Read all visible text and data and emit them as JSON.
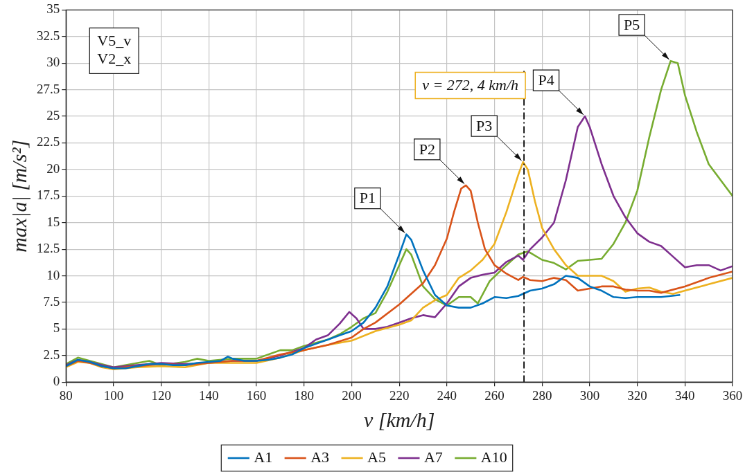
{
  "chart_data": {
    "type": "line",
    "xlabel": "v [km/h]",
    "ylabel": "max|a| [m/s²]",
    "xlim": [
      80,
      360
    ],
    "xticks": [
      80,
      100,
      120,
      140,
      160,
      180,
      200,
      220,
      240,
      260,
      280,
      300,
      320,
      340,
      360
    ],
    "ylim": [
      0,
      35
    ],
    "yticks": [
      0,
      2.5,
      5,
      7.5,
      10,
      12.5,
      15,
      17.5,
      20,
      22.5,
      25,
      27.5,
      30,
      32.5,
      35
    ],
    "grid": true,
    "legend": "bottom",
    "line_style": "solid",
    "marker": "none",
    "series": [
      {
        "name": "A1",
        "color": "#0072bd",
        "x": [
          80,
          85,
          90,
          95,
          100,
          105,
          110,
          115,
          120,
          125,
          130,
          135,
          140,
          145,
          148,
          150,
          155,
          160,
          165,
          170,
          175,
          180,
          185,
          190,
          195,
          200,
          205,
          210,
          215,
          220,
          223,
          225,
          230,
          235,
          240,
          245,
          250,
          255,
          260,
          265,
          270,
          275,
          280,
          285,
          290,
          295,
          300,
          305,
          310,
          315,
          320,
          325,
          330,
          338
        ],
        "values": [
          1.5,
          2.1,
          1.9,
          1.5,
          1.3,
          1.3,
          1.5,
          1.7,
          1.7,
          1.6,
          1.6,
          1.8,
          1.9,
          2.0,
          2.4,
          2.2,
          2.0,
          2.0,
          2.1,
          2.3,
          2.6,
          3.2,
          3.6,
          4.0,
          4.4,
          4.8,
          5.6,
          7.0,
          9.0,
          12.0,
          13.9,
          13.4,
          10.5,
          8.2,
          7.2,
          7.0,
          7.0,
          7.4,
          8.0,
          7.9,
          8.1,
          8.6,
          8.8,
          9.2,
          10.0,
          9.8,
          9.0,
          8.6,
          8.0,
          7.9,
          8.0,
          8.0,
          8.0,
          8.2
        ]
      },
      {
        "name": "A3",
        "color": "#d95319",
        "x": [
          80,
          85,
          90,
          95,
          100,
          110,
          120,
          130,
          140,
          150,
          160,
          170,
          180,
          190,
          200,
          205,
          210,
          220,
          230,
          235,
          240,
          243,
          246,
          248,
          250,
          253,
          256,
          260,
          265,
          270,
          272,
          275,
          280,
          285,
          290,
          295,
          300,
          305,
          310,
          315,
          320,
          325,
          330,
          340,
          350,
          360
        ],
        "values": [
          1.5,
          2.0,
          1.8,
          1.5,
          1.3,
          1.5,
          1.7,
          1.6,
          1.8,
          2.0,
          2.0,
          2.6,
          3.0,
          3.5,
          4.2,
          5.0,
          5.6,
          7.3,
          9.3,
          11.0,
          13.5,
          16.0,
          18.2,
          18.5,
          18.0,
          15.0,
          12.5,
          11.0,
          10.2,
          9.6,
          9.9,
          9.6,
          9.5,
          9.8,
          9.6,
          8.6,
          8.8,
          9.0,
          9.0,
          8.7,
          8.6,
          8.6,
          8.4,
          9.0,
          9.8,
          10.4
        ]
      },
      {
        "name": "A5",
        "color": "#edb120",
        "x": [
          80,
          85,
          90,
          95,
          100,
          110,
          120,
          130,
          140,
          150,
          160,
          170,
          180,
          190,
          200,
          210,
          220,
          225,
          230,
          235,
          240,
          245,
          250,
          255,
          260,
          265,
          270,
          272,
          274,
          277,
          280,
          285,
          290,
          295,
          300,
          305,
          310,
          315,
          320,
          325,
          330,
          335,
          340,
          350,
          360
        ],
        "values": [
          1.4,
          1.9,
          1.8,
          1.4,
          1.2,
          1.4,
          1.5,
          1.4,
          1.8,
          1.8,
          1.8,
          2.3,
          3.0,
          3.5,
          3.9,
          4.8,
          5.4,
          5.8,
          7.0,
          7.7,
          8.2,
          9.8,
          10.5,
          11.5,
          13.0,
          16.0,
          19.5,
          20.7,
          20.0,
          17.0,
          14.5,
          12.5,
          11.0,
          10.0,
          10.0,
          10.0,
          9.5,
          8.5,
          8.8,
          8.9,
          8.5,
          8.3,
          8.6,
          9.2,
          9.8
        ]
      },
      {
        "name": "A7",
        "color": "#7e2f8e",
        "x": [
          80,
          85,
          90,
          95,
          100,
          110,
          120,
          130,
          140,
          150,
          160,
          170,
          180,
          185,
          190,
          195,
          199,
          202,
          205,
          210,
          215,
          220,
          225,
          230,
          235,
          240,
          245,
          250,
          255,
          260,
          265,
          270,
          272,
          275,
          280,
          285,
          290,
          295,
          298,
          300,
          305,
          310,
          315,
          320,
          325,
          330,
          335,
          340,
          345,
          350,
          355,
          360
        ],
        "values": [
          1.6,
          2.1,
          1.9,
          1.6,
          1.4,
          1.6,
          1.8,
          1.7,
          1.8,
          2.0,
          2.0,
          2.5,
          3.2,
          4.0,
          4.4,
          5.5,
          6.6,
          6.0,
          5.0,
          5.0,
          5.2,
          5.6,
          6.0,
          6.3,
          6.1,
          7.4,
          9.0,
          9.8,
          10.1,
          10.3,
          11.3,
          11.9,
          11.5,
          12.5,
          13.6,
          15.0,
          19.0,
          24.0,
          25.0,
          24.0,
          20.5,
          17.5,
          15.5,
          14.0,
          13.2,
          12.8,
          11.8,
          10.8,
          11.0,
          11.0,
          10.5,
          10.9
        ]
      },
      {
        "name": "A10",
        "color": "#77ac30",
        "x": [
          80,
          85,
          90,
          100,
          115,
          120,
          130,
          135,
          140,
          150,
          160,
          170,
          175,
          180,
          190,
          195,
          200,
          205,
          210,
          215,
          220,
          223,
          225,
          230,
          235,
          240,
          245,
          250,
          253,
          258,
          265,
          270,
          274,
          280,
          285,
          290,
          295,
          300,
          305,
          310,
          315,
          320,
          325,
          330,
          334,
          337,
          340,
          345,
          350,
          355,
          360
        ],
        "values": [
          1.7,
          2.3,
          2.0,
          1.4,
          2.0,
          1.6,
          1.9,
          2.2,
          2.0,
          2.2,
          2.2,
          3.0,
          3.0,
          3.4,
          4.0,
          4.5,
          5.2,
          6.0,
          6.5,
          8.5,
          11.0,
          12.5,
          12.0,
          9.0,
          7.8,
          7.2,
          8.0,
          8.0,
          7.4,
          9.5,
          11.0,
          12.0,
          12.3,
          11.5,
          11.2,
          10.6,
          11.4,
          11.5,
          11.6,
          13.0,
          15.0,
          18.0,
          23.0,
          27.5,
          30.2,
          30.0,
          27.0,
          23.5,
          20.5,
          19.0,
          17.5
        ]
      }
    ],
    "ref_lines": [
      {
        "axis": "x",
        "value": 272.4,
        "label": "v = 272, 4 km/h",
        "color": "#000000",
        "line_style": "dashed"
      }
    ],
    "annotations": [
      "V5_v",
      "V2_x",
      {
        "text": "P1",
        "x": 223,
        "y": 13.9
      },
      {
        "text": "P2",
        "x": 248,
        "y": 18.5
      },
      {
        "text": "P3",
        "x": 272,
        "y": 20.7
      },
      {
        "text": "P4",
        "x": 298,
        "y": 25.0
      },
      {
        "text": "P5",
        "x": 334,
        "y": 30.2
      }
    ]
  }
}
